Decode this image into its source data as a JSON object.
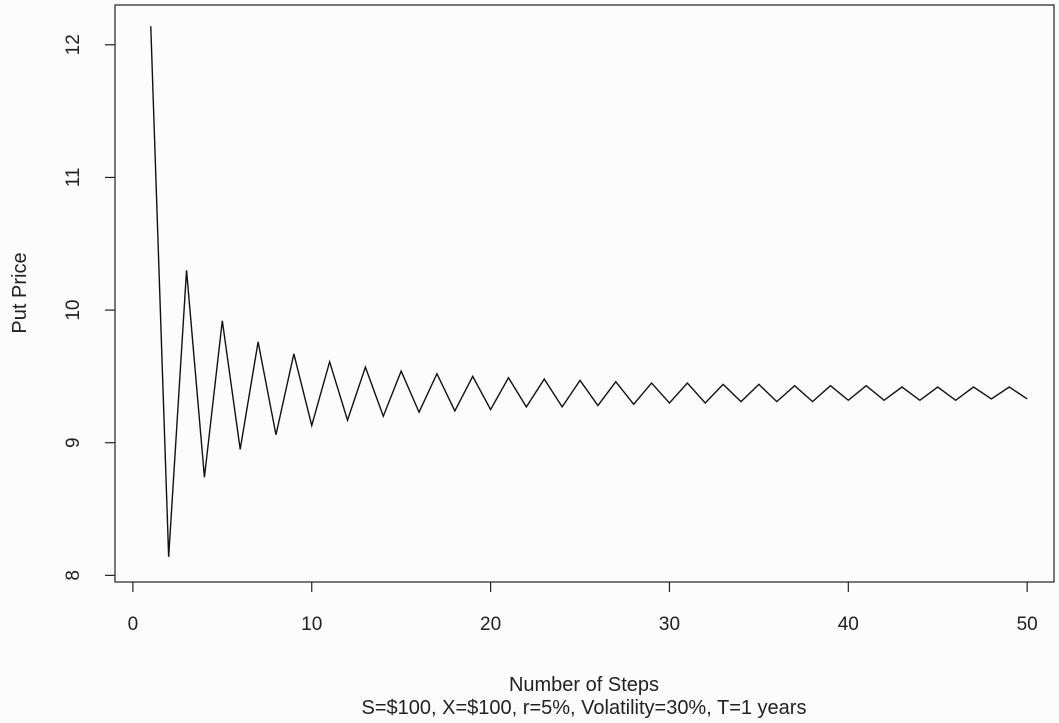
{
  "chart_data": {
    "type": "line",
    "title": "",
    "xlabel": "Number of Steps",
    "ylabel": "Put Price",
    "subtitle": "S=$100, X=$100, r=5%, Volatility=30%, T=1 years",
    "xlim": [
      -1,
      51.5
    ],
    "ylim": [
      7.95,
      12.3
    ],
    "xticks": [
      0,
      10,
      20,
      30,
      40,
      50
    ],
    "yticks": [
      8,
      9,
      10,
      11,
      12
    ],
    "grid": false,
    "series": [
      {
        "x": [
          1,
          2,
          3,
          4,
          5,
          6,
          7,
          8,
          9,
          10,
          11,
          12,
          13,
          14,
          15,
          16,
          17,
          18,
          19,
          20,
          21,
          22,
          23,
          24,
          25,
          26,
          27,
          28,
          29,
          30,
          31,
          32,
          33,
          34,
          35,
          36,
          37,
          38,
          39,
          40,
          41,
          42,
          43,
          44,
          45,
          46,
          47,
          48,
          49,
          50
        ],
        "values": [
          12.14,
          8.14,
          10.3,
          8.74,
          9.92,
          8.95,
          9.76,
          9.06,
          9.67,
          9.13,
          9.61,
          9.17,
          9.57,
          9.2,
          9.54,
          9.23,
          9.52,
          9.24,
          9.5,
          9.25,
          9.49,
          9.27,
          9.48,
          9.27,
          9.47,
          9.28,
          9.46,
          9.29,
          9.45,
          9.3,
          9.45,
          9.3,
          9.44,
          9.31,
          9.44,
          9.31,
          9.43,
          9.31,
          9.43,
          9.32,
          9.43,
          9.32,
          9.42,
          9.32,
          9.42,
          9.32,
          9.42,
          9.33,
          9.42,
          9.33
        ],
        "color": "#111111"
      }
    ]
  }
}
